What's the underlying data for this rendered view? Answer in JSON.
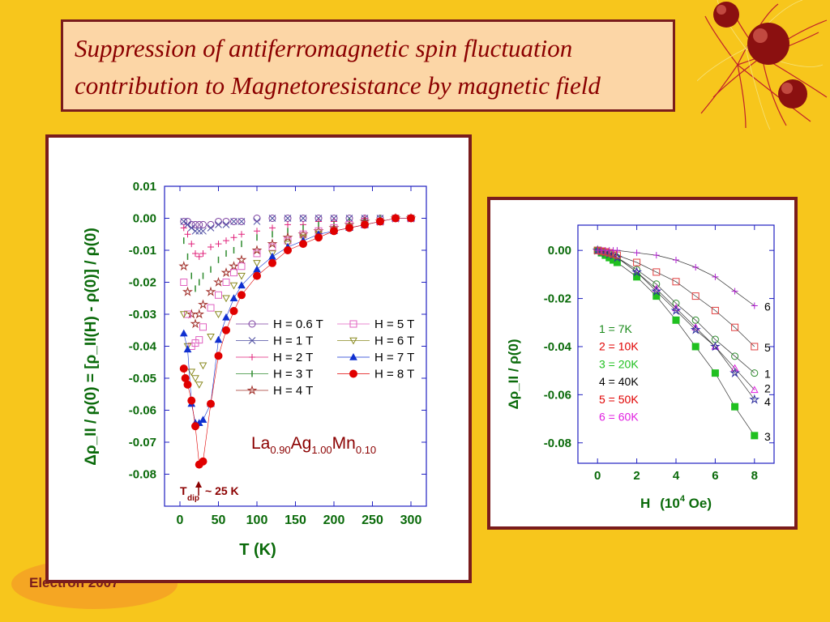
{
  "slide": {
    "title": "Suppression of antiferromagnetic spin fluctuation contribution to Magnetoresistance by magnetic field",
    "badge": "Electron 2007",
    "colors": {
      "background": "#f7c61c",
      "title_fill": "#fcd6a6",
      "frame": "#7a1c1c",
      "title_text": "#8b0000",
      "axis_label": "#008000"
    }
  },
  "chart_data": [
    {
      "type": "scatter",
      "xlabel": "T (K)",
      "ylabel": "Δρ_II / ρ(0) = [ρ_II(H) - ρ(0)] / ρ(0)",
      "xlim": [
        -20,
        320
      ],
      "ylim": [
        -0.09,
        0.01
      ],
      "xticks": [
        0,
        50,
        100,
        150,
        200,
        250,
        300
      ],
      "yticks": [
        0.01,
        0.0,
        -0.01,
        -0.02,
        -0.03,
        -0.04,
        -0.05,
        -0.06,
        -0.07,
        -0.08
      ],
      "ytick_labels": [
        "0.01",
        "0.00",
        "-0.01",
        "-0.02",
        "-0.03",
        "-0.04",
        "-0.05",
        "-0.06",
        "-0.07",
        "-0.08"
      ],
      "grid": false,
      "legend_position": "center-right",
      "annotation": {
        "formula_parts": [
          "La",
          "0.90",
          "Ag",
          "1.00",
          "Mn",
          "0.10"
        ],
        "tdip": "T",
        "tdip_sub": "dip",
        "tdip_value": "~ 25 K"
      },
      "series": [
        {
          "name": "H = 0.6 T",
          "marker": "circle-open",
          "color": "#7b3fa0",
          "x": [
            5,
            10,
            15,
            20,
            25,
            30,
            40,
            50,
            60,
            70,
            80,
            100,
            120,
            140,
            160,
            180,
            200,
            220,
            240,
            260,
            280,
            300
          ],
          "y": [
            -0.001,
            -0.001,
            -0.002,
            -0.002,
            -0.002,
            -0.002,
            -0.002,
            -0.001,
            -0.001,
            -0.001,
            -0.001,
            0,
            0,
            0,
            0,
            0,
            0,
            0,
            0,
            0,
            0,
            0
          ]
        },
        {
          "name": "H = 1 T",
          "marker": "x",
          "color": "#4a4aa0",
          "x": [
            5,
            10,
            15,
            20,
            25,
            30,
            40,
            50,
            60,
            70,
            80,
            100,
            120,
            140,
            160,
            180,
            200,
            220,
            240,
            260,
            280,
            300
          ],
          "y": [
            -0.001,
            -0.002,
            -0.003,
            -0.004,
            -0.004,
            -0.004,
            -0.003,
            -0.002,
            -0.002,
            -0.001,
            -0.001,
            -0.001,
            0,
            0,
            0,
            0,
            0,
            0,
            0,
            0,
            0,
            0
          ]
        },
        {
          "name": "H = 2 T",
          "marker": "plus",
          "color": "#e0207a",
          "x": [
            5,
            10,
            15,
            20,
            25,
            30,
            40,
            50,
            60,
            70,
            80,
            100,
            120,
            140,
            160,
            180,
            200,
            220,
            240,
            260,
            280,
            300
          ],
          "y": [
            -0.003,
            -0.005,
            -0.008,
            -0.011,
            -0.012,
            -0.011,
            -0.009,
            -0.008,
            -0.007,
            -0.006,
            -0.005,
            -0.004,
            -0.003,
            -0.002,
            -0.002,
            -0.001,
            -0.001,
            -0.001,
            0,
            0,
            0,
            0
          ]
        },
        {
          "name": "H = 3 T",
          "marker": "bar",
          "color": "#2e8b2e",
          "x": [
            5,
            10,
            15,
            20,
            25,
            30,
            40,
            50,
            60,
            70,
            80,
            100,
            120,
            140,
            160,
            180,
            200,
            220,
            240,
            260,
            280,
            300
          ],
          "y": [
            -0.007,
            -0.012,
            -0.018,
            -0.022,
            -0.02,
            -0.018,
            -0.016,
            -0.013,
            -0.011,
            -0.01,
            -0.008,
            -0.006,
            -0.005,
            -0.004,
            -0.003,
            -0.002,
            -0.002,
            -0.001,
            -0.001,
            0,
            0,
            0
          ]
        },
        {
          "name": "H = 4 T",
          "marker": "star-open",
          "color": "#a0302a",
          "x": [
            5,
            10,
            15,
            20,
            25,
            30,
            40,
            50,
            60,
            70,
            80,
            100,
            120,
            140,
            160,
            180,
            200,
            220,
            240,
            260,
            280,
            300
          ],
          "y": [
            -0.015,
            -0.023,
            -0.03,
            -0.033,
            -0.03,
            -0.027,
            -0.023,
            -0.02,
            -0.017,
            -0.015,
            -0.013,
            -0.01,
            -0.008,
            -0.006,
            -0.005,
            -0.004,
            -0.003,
            -0.002,
            -0.001,
            -0.001,
            0,
            0
          ]
        },
        {
          "name": "H = 5 T",
          "marker": "square-open",
          "color": "#e060c0",
          "x": [
            5,
            10,
            15,
            20,
            25,
            30,
            40,
            50,
            60,
            70,
            80,
            100,
            120,
            140,
            160,
            180,
            200,
            220,
            240,
            260,
            280,
            300
          ],
          "y": [
            -0.02,
            -0.03,
            -0.04,
            -0.039,
            -0.038,
            -0.034,
            -0.028,
            -0.024,
            -0.02,
            -0.017,
            -0.015,
            -0.011,
            -0.009,
            -0.007,
            -0.005,
            -0.004,
            -0.003,
            -0.002,
            -0.002,
            -0.001,
            0,
            0
          ]
        },
        {
          "name": "H = 6 T",
          "marker": "triangle-down-open",
          "color": "#8a8a20",
          "x": [
            5,
            10,
            15,
            20,
            25,
            30,
            40,
            50,
            60,
            70,
            80,
            100,
            120,
            140,
            160,
            180,
            200,
            220,
            240,
            260,
            280,
            300
          ],
          "y": [
            -0.03,
            -0.04,
            -0.048,
            -0.05,
            -0.052,
            -0.046,
            -0.037,
            -0.03,
            -0.025,
            -0.021,
            -0.018,
            -0.014,
            -0.011,
            -0.008,
            -0.006,
            -0.005,
            -0.004,
            -0.003,
            -0.002,
            -0.001,
            0,
            0
          ]
        },
        {
          "name": "H = 7 T",
          "marker": "triangle-filled",
          "color": "#1030d0",
          "x": [
            5,
            10,
            15,
            20,
            25,
            30,
            40,
            50,
            60,
            70,
            80,
            100,
            120,
            140,
            160,
            180,
            200,
            220,
            240,
            260,
            280,
            300
          ],
          "y": [
            -0.036,
            -0.041,
            -0.058,
            -0.064,
            -0.064,
            -0.063,
            -0.058,
            -0.038,
            -0.031,
            -0.025,
            -0.021,
            -0.016,
            -0.012,
            -0.009,
            -0.007,
            -0.005,
            -0.004,
            -0.003,
            -0.002,
            -0.001,
            0,
            0
          ]
        },
        {
          "name": "H = 8 T",
          "marker": "circle-filled",
          "color": "#e00000",
          "x": [
            5,
            7,
            10,
            15,
            20,
            25,
            30,
            40,
            50,
            60,
            70,
            80,
            100,
            120,
            140,
            160,
            180,
            200,
            220,
            240,
            260,
            280,
            300
          ],
          "y": [
            -0.047,
            -0.05,
            -0.052,
            -0.057,
            -0.065,
            -0.077,
            -0.076,
            -0.058,
            -0.043,
            -0.035,
            -0.029,
            -0.024,
            -0.018,
            -0.014,
            -0.01,
            -0.008,
            -0.006,
            -0.004,
            -0.003,
            -0.002,
            -0.001,
            0,
            0
          ]
        }
      ]
    },
    {
      "type": "line",
      "xlabel": "H (10^4 Oe)",
      "xlabel_parts": [
        "H",
        "(10",
        "4",
        " Oe)"
      ],
      "ylabel": "Δρ_II / ρ(0)",
      "xlim": [
        -1,
        9
      ],
      "ylim": [
        -0.0885,
        0.0105
      ],
      "xticks": [
        0,
        2,
        4,
        6,
        8
      ],
      "yticks": [
        0.0,
        -0.02,
        -0.04,
        -0.06,
        -0.08
      ],
      "ytick_labels": [
        "0.00",
        "-0.02",
        "-0.04",
        "-0.06",
        "-0.08"
      ],
      "grid": false,
      "legend_position": "center-left",
      "legend": [
        {
          "label": "1 = 7K",
          "color": "#1a8a1a"
        },
        {
          "label": "2 = 10K",
          "color": "#e00000"
        },
        {
          "label": "3 = 20K",
          "color": "#20c020"
        },
        {
          "label": "4 = 40K",
          "color": "#000000"
        },
        {
          "label": "5 = 50K",
          "color": "#e00000"
        },
        {
          "label": "6 = 60K",
          "color": "#e020e0"
        }
      ],
      "series": [
        {
          "name": "1",
          "marker": "circle-open",
          "color": "#2e8b2e",
          "x": [
            0,
            0.2,
            0.4,
            0.6,
            0.8,
            1,
            2,
            3,
            4,
            5,
            6,
            7,
            8
          ],
          "y": [
            0,
            -0.0005,
            -0.001,
            -0.0015,
            -0.002,
            -0.003,
            -0.008,
            -0.014,
            -0.022,
            -0.029,
            -0.037,
            -0.044,
            -0.051
          ]
        },
        {
          "name": "2",
          "marker": "triangle-open",
          "color": "#e020e0",
          "x": [
            0,
            0.2,
            0.4,
            0.6,
            0.8,
            1,
            2,
            3,
            4,
            5,
            6,
            7,
            8
          ],
          "y": [
            0,
            -0.0005,
            -0.001,
            -0.0015,
            -0.002,
            -0.003,
            -0.009,
            -0.016,
            -0.024,
            -0.032,
            -0.04,
            -0.049,
            -0.058
          ]
        },
        {
          "name": "3",
          "marker": "square-filled",
          "color": "#20c020",
          "x": [
            0,
            0.2,
            0.4,
            0.6,
            0.8,
            1,
            2,
            3,
            4,
            5,
            6,
            7,
            8
          ],
          "y": [
            0,
            -0.001,
            -0.002,
            -0.003,
            -0.004,
            -0.005,
            -0.011,
            -0.019,
            -0.029,
            -0.04,
            -0.051,
            -0.065,
            -0.077
          ]
        },
        {
          "name": "4",
          "marker": "star-open",
          "color": "#3030a0",
          "x": [
            0,
            0.2,
            0.4,
            0.6,
            0.8,
            1,
            2,
            3,
            4,
            5,
            6,
            7,
            8
          ],
          "y": [
            0,
            -0.0005,
            -0.001,
            -0.0015,
            -0.002,
            -0.003,
            -0.009,
            -0.017,
            -0.025,
            -0.033,
            -0.04,
            -0.051,
            -0.062
          ]
        },
        {
          "name": "5",
          "marker": "square-open",
          "color": "#e04040",
          "x": [
            0,
            0.2,
            0.4,
            0.6,
            0.8,
            1,
            2,
            3,
            4,
            5,
            6,
            7,
            8
          ],
          "y": [
            0,
            -0.0003,
            -0.0006,
            -0.001,
            -0.0015,
            -0.002,
            -0.005,
            -0.009,
            -0.013,
            -0.019,
            -0.025,
            -0.032,
            -0.04
          ]
        },
        {
          "name": "6",
          "marker": "plus",
          "color": "#b020d0",
          "x": [
            0,
            0.2,
            0.4,
            0.6,
            0.8,
            1,
            2,
            3,
            4,
            5,
            6,
            7,
            8
          ],
          "y": [
            0,
            0,
            0,
            0,
            0,
            0,
            -0.001,
            -0.002,
            -0.004,
            -0.007,
            -0.011,
            -0.017,
            -0.023
          ]
        }
      ],
      "end_labels": [
        "6",
        "5",
        "1",
        "2",
        "4",
        "3"
      ]
    }
  ]
}
